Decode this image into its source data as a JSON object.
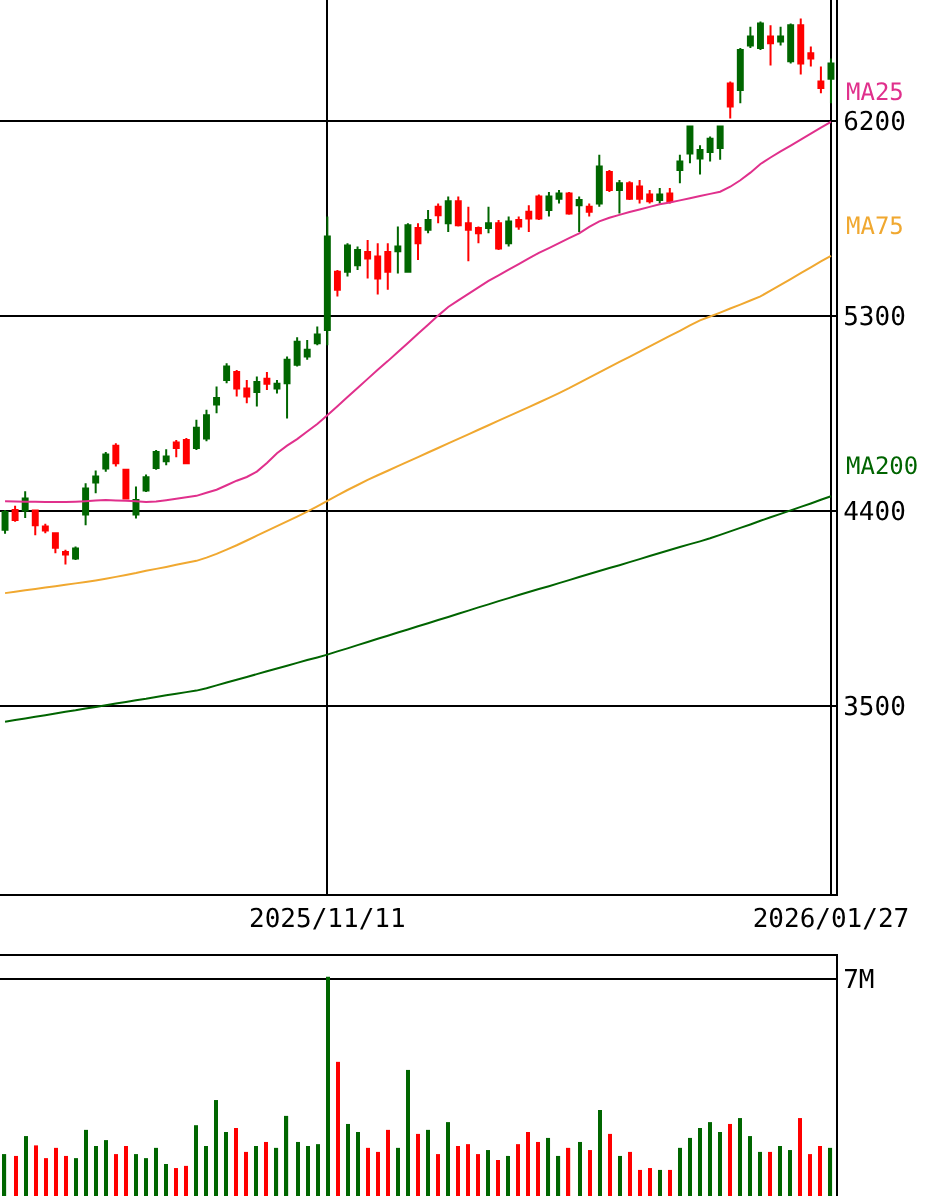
{
  "chart_data": [
    {
      "type": "candlestick",
      "categories": [
        null,
        null,
        null,
        null,
        null,
        null,
        null,
        null,
        null,
        null,
        null,
        null,
        null,
        null,
        null,
        null,
        null,
        null,
        null,
        null,
        null,
        null,
        null,
        null,
        null,
        null,
        null,
        null,
        null,
        null,
        null,
        null,
        "2025/11/11",
        null,
        null,
        null,
        null,
        null,
        null,
        null,
        null,
        null,
        null,
        null,
        null,
        null,
        null,
        null,
        null,
        null,
        null,
        null,
        null,
        null,
        null,
        null,
        null,
        null,
        null,
        null,
        null,
        null,
        null,
        null,
        null,
        null,
        null,
        null,
        null,
        null,
        null,
        null,
        null,
        null,
        null,
        null,
        null,
        null,
        null,
        null,
        null,
        null,
        "2026/01/27"
      ],
      "ohlc": [
        [
          4311,
          4403,
          4293,
          4394
        ],
        [
          4403,
          4422,
          4348,
          4357
        ],
        [
          4400,
          4489,
          4366,
          4456
        ],
        [
          4400,
          4400,
          4286,
          4332
        ],
        [
          4327,
          4339,
          4295,
          4308
        ],
        [
          4295,
          4295,
          4203,
          4228
        ],
        [
          4209,
          4219,
          4151,
          4197
        ],
        [
          4179,
          4234,
          4172,
          4225
        ],
        [
          4382,
          4526,
          4332,
          4502
        ],
        [
          4530,
          4585,
          4480,
          4557
        ],
        [
          4594,
          4671,
          4579,
          4659
        ],
        [
          4699,
          4711,
          4604,
          4618
        ],
        [
          4588,
          4588,
          4456,
          4456
        ],
        [
          4382,
          4511,
          4364,
          4449
        ],
        [
          4493,
          4567,
          4486,
          4554
        ],
        [
          4597,
          4680,
          4588,
          4671
        ],
        [
          4628,
          4683,
          4609,
          4650
        ],
        [
          4714,
          4726,
          4646,
          4689
        ],
        [
          4726,
          4735,
          4618,
          4618
        ],
        [
          4689,
          4819,
          4680,
          4782
        ],
        [
          4733,
          4865,
          4720,
          4840
        ],
        [
          4890,
          4973,
          4849,
          4920
        ],
        [
          5003,
          5080,
          4988,
          5065
        ],
        [
          5040,
          5049,
          4927,
          4964
        ],
        [
          4964,
          5003,
          4895,
          4927
        ],
        [
          4948,
          5019,
          4881,
          4994
        ],
        [
          5009,
          5040,
          4957,
          4985
        ],
        [
          4964,
          5003,
          4941,
          4985
        ],
        [
          4988,
          5111,
          4825,
          5096
        ],
        [
          5073,
          5200,
          5065,
          5179
        ],
        [
          5111,
          5188,
          5096,
          5142
        ],
        [
          5172,
          5250,
          5163,
          5213
        ],
        [
          5234,
          5757,
          5163,
          5665
        ],
        [
          5502,
          5511,
          5388,
          5419
        ],
        [
          5502,
          5634,
          5480,
          5624
        ],
        [
          5532,
          5619,
          5511,
          5603
        ],
        [
          5594,
          5649,
          5471,
          5564
        ],
        [
          5573,
          5634,
          5397,
          5471
        ],
        [
          5594,
          5634,
          5419,
          5502
        ],
        [
          5597,
          5711,
          5495,
          5619
        ],
        [
          5502,
          5726,
          5502,
          5717
        ],
        [
          5705,
          5726,
          5557,
          5634
        ],
        [
          5696,
          5788,
          5680,
          5742
        ],
        [
          5803,
          5818,
          5726,
          5763
        ],
        [
          5726,
          5850,
          5686,
          5828
        ],
        [
          5828,
          5850,
          5711,
          5717
        ],
        [
          5726,
          5803,
          5551,
          5696
        ],
        [
          5705,
          5711,
          5634,
          5680
        ],
        [
          5705,
          5803,
          5680,
          5726
        ],
        [
          5726,
          5742,
          5603,
          5610
        ],
        [
          5634,
          5757,
          5619,
          5735
        ],
        [
          5742,
          5757,
          5696,
          5711
        ],
        [
          5779,
          5809,
          5686,
          5748
        ],
        [
          5850,
          5859,
          5742,
          5748
        ],
        [
          5788,
          5871,
          5757,
          5850
        ],
        [
          5840,
          5880,
          5818,
          5864
        ],
        [
          5864,
          5871,
          5766,
          5772
        ],
        [
          5809,
          5850,
          5686,
          5834
        ],
        [
          5803,
          5818,
          5757,
          5779
        ],
        [
          5818,
          6043,
          5803,
          5988
        ],
        [
          5963,
          5972,
          5871,
          5880
        ],
        [
          5880,
          5926,
          5772,
          5911
        ],
        [
          5911,
          5920,
          5834,
          5840
        ],
        [
          5896,
          5926,
          5818,
          5840
        ],
        [
          5859,
          5880,
          5818,
          5828
        ],
        [
          5834,
          5889,
          5818,
          5859
        ],
        [
          5864,
          5889,
          5818,
          5828
        ],
        [
          5972,
          6043,
          5911,
          6012
        ],
        [
          6049,
          6178,
          6003,
          6173
        ],
        [
          6025,
          6086,
          5951,
          6065
        ],
        [
          6055,
          6127,
          6012,
          6117
        ],
        [
          6074,
          6178,
          6019,
          6173
        ],
        [
          6372,
          6381,
          6210,
          6265
        ],
        [
          6342,
          6535,
          6280,
          6526
        ],
        [
          6547,
          6634,
          6535,
          6588
        ],
        [
          6535,
          6658,
          6526,
          6649
        ],
        [
          6588,
          6640,
          6455,
          6557
        ],
        [
          6566,
          6634,
          6547,
          6588
        ],
        [
          6474,
          6649,
          6464,
          6640
        ],
        [
          6640,
          6671,
          6413,
          6464
        ],
        [
          6511,
          6542,
          6450,
          6487
        ],
        [
          6381,
          6450,
          6326,
          6351
        ],
        [
          6394,
          6487,
          6280,
          6464
        ]
      ],
      "colors": [
        "#006600",
        "#ff0000",
        "#006600",
        "#ff0000",
        "#ff0000",
        "#ff0000",
        "#ff0000",
        "#006600",
        "#006600",
        "#006600",
        "#006600",
        "#ff0000",
        "#ff0000",
        "#006600",
        "#006600",
        "#006600",
        "#006600",
        "#ff0000",
        "#ff0000",
        "#006600",
        "#006600",
        "#006600",
        "#006600",
        "#ff0000",
        "#ff0000",
        "#006600",
        "#ff0000",
        "#006600",
        "#006600",
        "#006600",
        "#006600",
        "#006600",
        "#006600",
        "#ff0000",
        "#006600",
        "#006600",
        "#ff0000",
        "#ff0000",
        "#ff0000",
        "#006600",
        "#006600",
        "#ff0000",
        "#006600",
        "#ff0000",
        "#006600",
        "#ff0000",
        "#ff0000",
        "#ff0000",
        "#006600",
        "#ff0000",
        "#006600",
        "#ff0000",
        "#ff0000",
        "#ff0000",
        "#006600",
        "#006600",
        "#ff0000",
        "#006600",
        "#ff0000",
        "#006600",
        "#ff0000",
        "#006600",
        "#ff0000",
        "#ff0000",
        "#ff0000",
        "#006600",
        "#ff0000",
        "#006600",
        "#006600",
        "#006600",
        "#006600",
        "#006600",
        "#ff0000",
        "#006600",
        "#006600",
        "#006600",
        "#ff0000",
        "#006600",
        "#006600",
        "#ff0000",
        "#ff0000",
        "#ff0000",
        "#006600"
      ],
      "series": [
        {
          "name": "MA25",
          "type": "line",
          "color": "#e0308c",
          "values": [
            4443,
            4442,
            4441,
            4441,
            4440,
            4440,
            4440,
            4441,
            4443,
            4446,
            4449,
            4447,
            4445,
            4443,
            4440,
            4442,
            4448,
            4455,
            4462,
            4468,
            4482,
            4496,
            4517,
            4538,
            4555,
            4580,
            4620,
            4665,
            4700,
            4730,
            4765,
            4800,
            4840,
            4882,
            4924,
            4966,
            5008,
            5050,
            5090,
            5132,
            5174,
            5216,
            5258,
            5300,
            5340,
            5370,
            5400,
            5430,
            5460,
            5486,
            5512,
            5538,
            5564,
            5590,
            5612,
            5635,
            5658,
            5680,
            5710,
            5735,
            5752,
            5765,
            5778,
            5790,
            5802,
            5814,
            5822,
            5832,
            5842,
            5852,
            5862,
            5872,
            5895,
            5925,
            5960,
            6000,
            6030,
            6058,
            6085,
            6112,
            6140,
            6168,
            6194
          ]
        },
        {
          "name": "MA75",
          "type": "line",
          "color": "#f0a830",
          "values": [
            4019,
            4025,
            4032,
            4038,
            4045,
            4051,
            4058,
            4064,
            4070,
            4077,
            4085,
            4094,
            4103,
            4112,
            4122,
            4131,
            4140,
            4150,
            4159,
            4168,
            4183,
            4200,
            4220,
            4240,
            4262,
            4284,
            4306,
            4328,
            4350,
            4372,
            4395,
            4420,
            4445,
            4470,
            4495,
            4518,
            4542,
            4563,
            4584,
            4605,
            4626,
            4647,
            4668,
            4689,
            4710,
            4731,
            4752,
            4773,
            4794,
            4815,
            4836,
            4857,
            4878,
            4899,
            4920,
            4942,
            4965,
            4990,
            5014,
            5038,
            5062,
            5086,
            5110,
            5134,
            5158,
            5182,
            5206,
            5230,
            5255,
            5278,
            5296,
            5314,
            5333,
            5351,
            5370,
            5389,
            5415,
            5442,
            5469,
            5496,
            5523,
            5550,
            5576
          ]
        },
        {
          "name": "MA200",
          "type": "line",
          "color": "#006400",
          "values": [
            3425,
            3433,
            3440,
            3448,
            3455,
            3463,
            3471,
            3478,
            3486,
            3493,
            3501,
            3509,
            3516,
            3524,
            3531,
            3539,
            3547,
            3554,
            3562,
            3569,
            3580,
            3593,
            3606,
            3619,
            3632,
            3645,
            3658,
            3671,
            3684,
            3697,
            3710,
            3722,
            3735,
            3750,
            3764,
            3779,
            3793,
            3808,
            3822,
            3837,
            3851,
            3866,
            3880,
            3895,
            3909,
            3924,
            3938,
            3953,
            3967,
            3982,
            3996,
            4010,
            4024,
            4038,
            4051,
            4065,
            4079,
            4093,
            4107,
            4121,
            4135,
            4148,
            4162,
            4176,
            4190,
            4204,
            4218,
            4232,
            4245,
            4258,
            4272,
            4288,
            4304,
            4320,
            4336,
            4353,
            4369,
            4385,
            4401,
            4417,
            4433,
            4450,
            4466
          ]
        }
      ],
      "ylim": [
        2630,
        6757
      ],
      "yticks": [
        3500,
        4400,
        5300,
        6200
      ],
      "grid": true
    },
    {
      "type": "bar",
      "categories": [
        null,
        null,
        null,
        null,
        null,
        null,
        null,
        null,
        null,
        null,
        null,
        null,
        null,
        null,
        null,
        null,
        null,
        null,
        null,
        null,
        null,
        null,
        null,
        null,
        null,
        null,
        null,
        null,
        null,
        null,
        null,
        null,
        "2025/11/11",
        null,
        null,
        null,
        null,
        null,
        null,
        null,
        null,
        null,
        null,
        null,
        null,
        null,
        null,
        null,
        null,
        null,
        null,
        null,
        null,
        null,
        null,
        null,
        null,
        null,
        null,
        null,
        null,
        null,
        null,
        null,
        null,
        null,
        null,
        null,
        null,
        null,
        null,
        null,
        null,
        null,
        null,
        null,
        null,
        null,
        null,
        null,
        null,
        null,
        "2026/01/27"
      ],
      "values": [
        1350000,
        1290000,
        1930000,
        1630000,
        1220000,
        1550000,
        1290000,
        1220000,
        2130000,
        1610000,
        1800000,
        1350000,
        1610000,
        1350000,
        1220000,
        1550000,
        1030000,
        900000,
        970000,
        2280000,
        1610000,
        3090000,
        2060000,
        2190000,
        1420000,
        1610000,
        1740000,
        1550000,
        2580000,
        1740000,
        1610000,
        1670000,
        7060000,
        4320000,
        2320000,
        2060000,
        1550000,
        1420000,
        2130000,
        1550000,
        4060000,
        2000000,
        2130000,
        1350000,
        2380000,
        1610000,
        1670000,
        1350000,
        1480000,
        1160000,
        1290000,
        1670000,
        2060000,
        1740000,
        1870000,
        1290000,
        1550000,
        1740000,
        1480000,
        2770000,
        2000000,
        1290000,
        1420000,
        840000,
        900000,
        840000,
        840000,
        1550000,
        1870000,
        2190000,
        2380000,
        2060000,
        2320000,
        2510000,
        1930000,
        1420000,
        1420000,
        1610000,
        1480000,
        2510000,
        1350000,
        1610000,
        1550000
      ],
      "colors": [
        "#006600",
        "#ff0000",
        "#006600",
        "#ff0000",
        "#ff0000",
        "#ff0000",
        "#ff0000",
        "#006600",
        "#006600",
        "#006600",
        "#006600",
        "#ff0000",
        "#ff0000",
        "#006600",
        "#006600",
        "#006600",
        "#006600",
        "#ff0000",
        "#ff0000",
        "#006600",
        "#006600",
        "#006600",
        "#006600",
        "#ff0000",
        "#ff0000",
        "#006600",
        "#ff0000",
        "#006600",
        "#006600",
        "#006600",
        "#006600",
        "#006600",
        "#006600",
        "#ff0000",
        "#006600",
        "#006600",
        "#ff0000",
        "#ff0000",
        "#ff0000",
        "#006600",
        "#006600",
        "#ff0000",
        "#006600",
        "#ff0000",
        "#006600",
        "#ff0000",
        "#ff0000",
        "#ff0000",
        "#006600",
        "#ff0000",
        "#006600",
        "#ff0000",
        "#ff0000",
        "#ff0000",
        "#006600",
        "#006600",
        "#ff0000",
        "#006600",
        "#ff0000",
        "#006600",
        "#ff0000",
        "#006600",
        "#ff0000",
        "#ff0000",
        "#ff0000",
        "#006600",
        "#ff0000",
        "#006600",
        "#006600",
        "#006600",
        "#006600",
        "#006600",
        "#ff0000",
        "#006600",
        "#006600",
        "#006600",
        "#ff0000",
        "#006600",
        "#006600",
        "#ff0000",
        "#ff0000",
        "#ff0000",
        "#006600"
      ],
      "ylim": [
        0,
        7730000
      ],
      "yticks": [
        {
          "value": 0,
          "label": null
        },
        {
          "value": 7000000,
          "label": "7M"
        }
      ],
      "grid": "y",
      "tick_labels": "y"
    }
  ]
}
